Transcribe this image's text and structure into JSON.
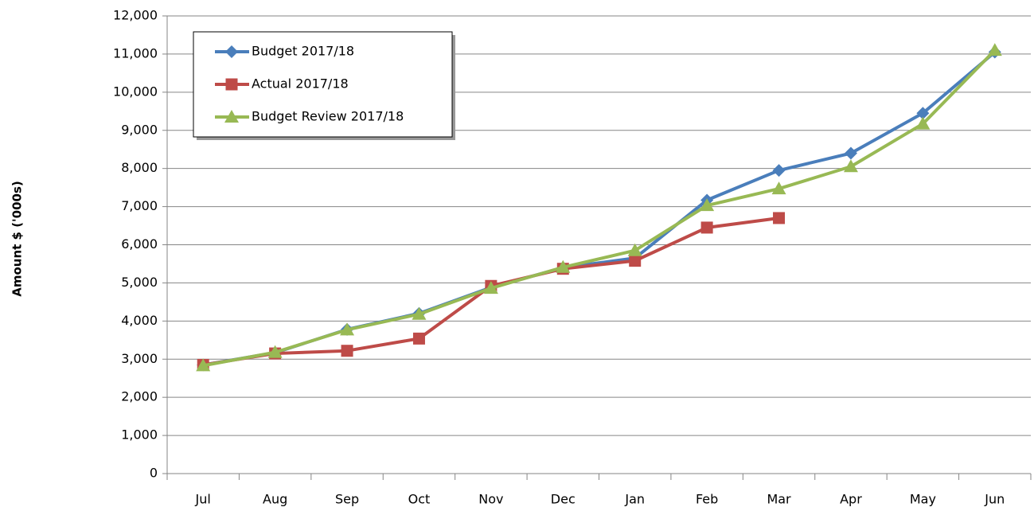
{
  "chart_data": {
    "type": "line",
    "y_label": "Amount $ ('000s)",
    "categories": [
      "Jul",
      "Aug",
      "Sep",
      "Oct",
      "Nov",
      "Dec",
      "Jan",
      "Feb",
      "Mar",
      "Apr",
      "May",
      "Jun"
    ],
    "series": [
      {
        "name": "Budget 2017/18",
        "color": "#4a7ebb",
        "marker": "diamond",
        "values": [
          2850,
          3170,
          3780,
          4200,
          4880,
          5400,
          5650,
          7170,
          7950,
          8400,
          9450,
          11050
        ]
      },
      {
        "name": "Actual 2017/18",
        "color": "#be4b48",
        "marker": "square",
        "values": [
          2850,
          3150,
          3220,
          3540,
          4920,
          5370,
          5580,
          6450,
          6700,
          null,
          null,
          null
        ]
      },
      {
        "name": "Budget Review 2017/18",
        "color": "#98b954",
        "marker": "triangle",
        "values": [
          2830,
          3180,
          3770,
          4180,
          4860,
          5410,
          5850,
          7030,
          7470,
          8050,
          9170,
          11100
        ]
      }
    ],
    "ylim": [
      0,
      12000
    ],
    "yticks": [
      0,
      {
        "value": 1000,
        "label": "1,000"
      },
      {
        "value": 2000,
        "label": "2,000"
      },
      {
        "value": 3000,
        "label": "3,000"
      },
      {
        "value": 4000,
        "label": "4,000"
      },
      {
        "value": 5000,
        "label": "5,000"
      },
      {
        "value": 6000,
        "label": "6,000"
      },
      {
        "value": 7000,
        "label": "7,000"
      },
      {
        "value": 8000,
        "label": "8,000"
      },
      {
        "value": 9000,
        "label": "9,000"
      },
      {
        "value": 10000,
        "label": "10,000"
      },
      {
        "value": 11000,
        "label": "11,000"
      },
      {
        "value": 12000,
        "label": "12,000"
      }
    ],
    "grid": true,
    "legend": "upper left"
  }
}
